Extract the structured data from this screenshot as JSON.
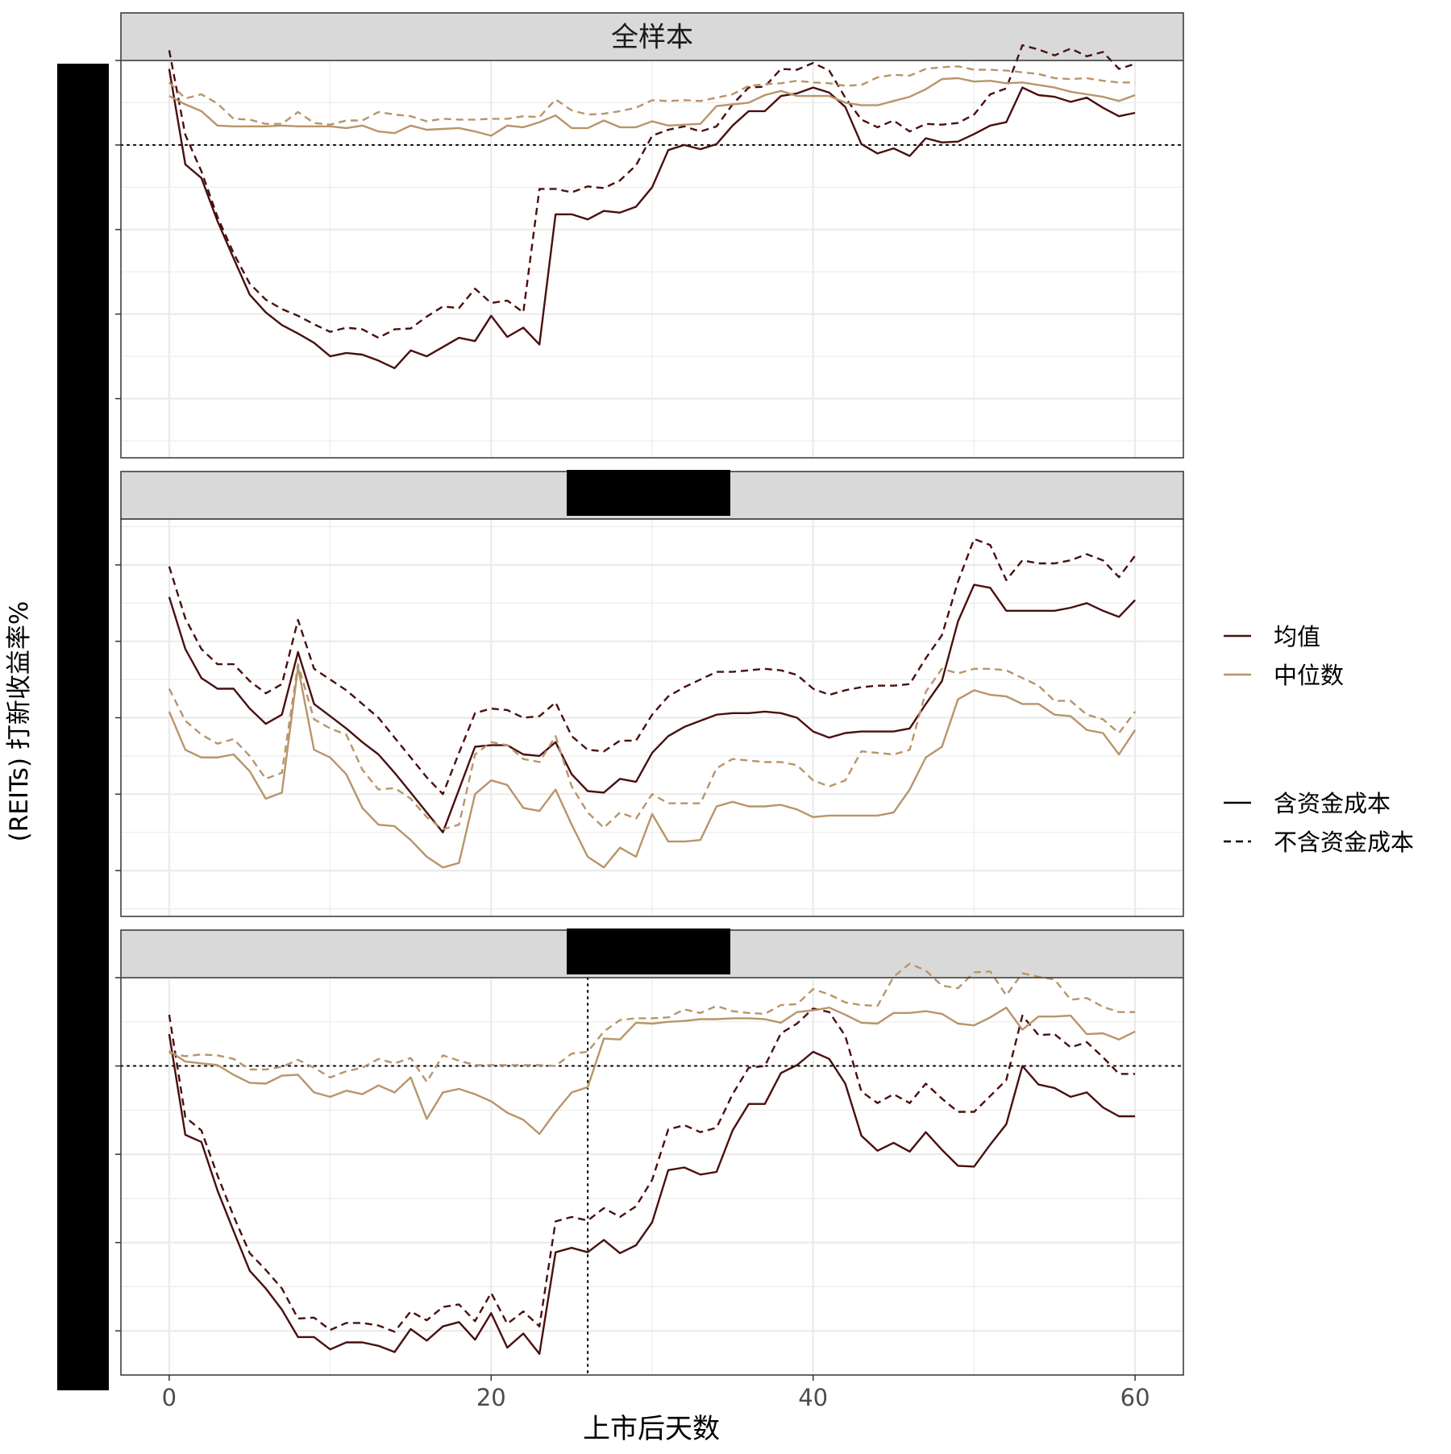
{
  "chart_data": {
    "type": "line",
    "xlabel": "上市后天数",
    "ylabel": "(REITs) 打新收益率%",
    "xlim": [
      -3,
      63
    ],
    "xticks": [
      0,
      20,
      40,
      60
    ],
    "xtick_labels": [
      "0",
      "20",
      "40",
      "60"
    ],
    "colors": {
      "mean": "#4a0f0f",
      "median": "#b8956a"
    },
    "legend": {
      "placement": "right",
      "color_entries": [
        {
          "label": "均值",
          "key": "mean"
        },
        {
          "label": "中位数",
          "key": "median"
        }
      ],
      "linetype_entries": [
        {
          "label": "含资金成本",
          "dash": "solid"
        },
        {
          "label": "不含资金成本",
          "dash": "dashed"
        }
      ]
    },
    "panels": [
      {
        "strip": "全样本",
        "ylim": [
          -27,
          20
        ],
        "hline": 10,
        "vline": null,
        "series": [
          {
            "name": "均值 含资金成本",
            "stat": "mean",
            "dash": "solid",
            "values": [
              19.0,
              7.7,
              6.1,
              1.0,
              -3.4,
              -7.7,
              -9.8,
              -11.3,
              -12.3,
              -13.4,
              -15.0,
              -14.6,
              -14.8,
              -15.5,
              -16.4,
              -14.3,
              -15.0,
              -13.9,
              -12.8,
              -13.2,
              -10.2,
              -12.7,
              -11.6,
              -13.6,
              1.8,
              1.8,
              1.2,
              2.2,
              2.0,
              2.7,
              5.0,
              9.4,
              10.0,
              9.5,
              10.1,
              12.3,
              14.0,
              14.0,
              15.8,
              16.1,
              16.8,
              16.2,
              14.5,
              10.1,
              9.0,
              9.6,
              8.7,
              10.8,
              10.3,
              10.4,
              11.3,
              12.3,
              12.7,
              16.8,
              15.9,
              15.7,
              15.1,
              15.6,
              14.4,
              13.4,
              13.8
            ]
          },
          {
            "name": "均值 不含资金成本",
            "stat": "mean",
            "dash": "dashed",
            "values": [
              21.2,
              11.2,
              6.9,
              1.5,
              -2.8,
              -6.4,
              -8.3,
              -9.4,
              -10.2,
              -11.2,
              -12.1,
              -11.6,
              -11.8,
              -12.8,
              -11.8,
              -11.7,
              -10.3,
              -9.1,
              -9.3,
              -7.0,
              -8.7,
              -8.4,
              -9.8,
              4.8,
              4.8,
              4.4,
              5.1,
              4.9,
              5.8,
              7.6,
              11.1,
              11.8,
              12.2,
              11.6,
              12.2,
              14.8,
              16.8,
              16.9,
              19.0,
              18.9,
              19.7,
              18.8,
              15.6,
              13.0,
              12.1,
              12.9,
              11.6,
              12.5,
              12.4,
              12.6,
              13.6,
              16.0,
              16.7,
              21.8,
              21.3,
              20.6,
              21.4,
              20.5,
              21.0,
              19.0,
              19.6
            ]
          },
          {
            "name": "中位数 含资金成本",
            "stat": "median",
            "dash": "solid",
            "values": [
              15.8,
              14.8,
              14.0,
              12.3,
              12.2,
              12.2,
              12.2,
              12.3,
              12.2,
              12.2,
              12.2,
              12.0,
              12.3,
              11.6,
              11.4,
              12.3,
              11.8,
              11.9,
              12.0,
              11.6,
              11.1,
              12.3,
              12.1,
              12.7,
              13.5,
              12.0,
              12.0,
              12.9,
              12.1,
              12.1,
              12.8,
              12.3,
              12.4,
              12.5,
              14.6,
              14.8,
              15.0,
              15.9,
              16.4,
              15.8,
              15.8,
              15.8,
              15.0,
              14.7,
              14.7,
              15.2,
              15.7,
              16.6,
              17.8,
              17.9,
              17.5,
              17.6,
              17.3,
              17.4,
              17.1,
              16.8,
              16.3,
              16.0,
              15.7,
              15.2,
              15.9
            ]
          },
          {
            "name": "中位数 不含资金成本",
            "stat": "median",
            "dash": "dashed",
            "values": [
              17.4,
              15.5,
              16.0,
              14.9,
              13.1,
              13.0,
              12.5,
              12.5,
              13.9,
              12.6,
              12.4,
              12.9,
              12.9,
              13.9,
              13.6,
              13.4,
              12.8,
              13.1,
              13.0,
              13.0,
              13.1,
              13.1,
              13.4,
              13.3,
              15.4,
              14.1,
              13.6,
              13.7,
              14.0,
              14.4,
              15.3,
              15.2,
              15.3,
              15.2,
              15.6,
              16.0,
              17.0,
              17.2,
              17.3,
              17.6,
              17.4,
              17.3,
              17.0,
              17.1,
              18.0,
              18.3,
              18.2,
              19.0,
              19.2,
              19.3,
              18.9,
              18.9,
              18.8,
              18.6,
              18.4,
              17.9,
              17.8,
              17.9,
              17.6,
              17.4,
              17.4
            ]
          }
        ]
      },
      {
        "strip": "",
        "ylim": [
          -8,
          18
        ],
        "hline": null,
        "vline": null,
        "series": [
          {
            "name": "均值 含资金成本",
            "stat": "mean",
            "dash": "solid",
            "values": [
              12.9,
              9.5,
              7.6,
              6.9,
              6.9,
              5.6,
              4.6,
              5.2,
              9.3,
              5.9,
              5.1,
              4.3,
              3.4,
              2.6,
              1.4,
              0.1,
              -1.2,
              -2.5,
              0.3,
              3.1,
              3.2,
              3.2,
              2.6,
              2.5,
              3.4,
              1.3,
              0.2,
              0.1,
              1.0,
              0.8,
              2.7,
              3.8,
              4.4,
              4.8,
              5.2,
              5.3,
              5.3,
              5.4,
              5.3,
              5.0,
              4.1,
              3.7,
              4.0,
              4.1,
              4.1,
              4.1,
              4.3,
              5.9,
              7.4,
              11.3,
              13.7,
              13.5,
              12.0,
              12.0,
              12.0,
              12.0,
              12.2,
              12.5,
              12.0,
              11.6,
              12.7
            ]
          },
          {
            "name": "均值 不含资金成本",
            "stat": "mean",
            "dash": "dashed",
            "values": [
              14.9,
              11.5,
              9.5,
              8.5,
              8.5,
              7.4,
              6.6,
              7.2,
              11.4,
              8.2,
              7.5,
              6.8,
              5.9,
              5.0,
              3.7,
              2.4,
              1.1,
              0.0,
              2.7,
              5.3,
              5.6,
              5.5,
              5.0,
              5.1,
              6.0,
              3.8,
              2.9,
              2.8,
              3.5,
              3.5,
              5.2,
              6.4,
              7.0,
              7.5,
              8.0,
              8.0,
              8.1,
              8.2,
              8.1,
              7.8,
              6.9,
              6.5,
              6.8,
              7.0,
              7.1,
              7.1,
              7.2,
              8.9,
              10.4,
              13.9,
              16.7,
              16.3,
              14.0,
              15.3,
              15.1,
              15.1,
              15.3,
              15.7,
              15.3,
              14.2,
              15.6
            ]
          },
          {
            "name": "中位数 含资金成本",
            "stat": "median",
            "dash": "solid",
            "values": [
              5.4,
              2.9,
              2.4,
              2.4,
              2.6,
              1.5,
              -0.3,
              0.1,
              8.3,
              2.9,
              2.4,
              1.3,
              -0.9,
              -2.0,
              -2.1,
              -3.0,
              -4.1,
              -4.8,
              -4.5,
              0.0,
              0.9,
              0.6,
              -0.9,
              -1.1,
              0.3,
              -2.0,
              -4.1,
              -4.8,
              -3.5,
              -4.1,
              -1.3,
              -3.1,
              -3.1,
              -3.0,
              -0.8,
              -0.5,
              -0.8,
              -0.8,
              -0.7,
              -1.0,
              -1.5,
              -1.4,
              -1.4,
              -1.4,
              -1.4,
              -1.2,
              0.3,
              2.4,
              3.1,
              6.2,
              6.8,
              6.5,
              6.4,
              5.9,
              5.9,
              5.2,
              5.1,
              4.2,
              4.0,
              2.6,
              4.2
            ]
          },
          {
            "name": "中位数 不含资金成本",
            "stat": "median",
            "dash": "dashed",
            "values": [
              6.9,
              4.8,
              3.9,
              3.3,
              3.6,
              2.5,
              1.0,
              1.4,
              8.5,
              4.9,
              4.3,
              3.9,
              1.6,
              0.3,
              0.4,
              -0.3,
              -1.5,
              -2.3,
              -2.0,
              2.6,
              3.4,
              3.2,
              2.3,
              2.1,
              3.8,
              0.5,
              -1.2,
              -2.2,
              -1.2,
              -1.6,
              0.0,
              -0.6,
              -0.6,
              -0.6,
              1.7,
              2.3,
              2.2,
              2.1,
              2.1,
              1.9,
              0.9,
              0.5,
              0.9,
              2.8,
              2.7,
              2.6,
              2.9,
              6.7,
              8.2,
              7.9,
              8.2,
              8.2,
              8.1,
              7.6,
              7.1,
              6.1,
              6.1,
              5.2,
              4.9,
              4.0,
              5.4
            ]
          }
        ]
      },
      {
        "strip": "",
        "ylim": [
          -35,
          10
        ],
        "hline": 0,
        "vline": 26,
        "series": [
          {
            "name": "均值 含资金成本",
            "stat": "mean",
            "dash": "solid",
            "values": [
              3.6,
              -7.8,
              -8.6,
              -14.1,
              -18.7,
              -23.2,
              -25.2,
              -27.6,
              -30.7,
              -30.7,
              -32.1,
              -31.3,
              -31.3,
              -31.7,
              -32.4,
              -29.8,
              -31.1,
              -29.5,
              -29.0,
              -31.0,
              -28.0,
              -31.9,
              -30.3,
              -32.6,
              -21.1,
              -20.6,
              -21.1,
              -19.7,
              -21.2,
              -20.3,
              -17.7,
              -11.8,
              -11.5,
              -12.3,
              -12.0,
              -7.3,
              -4.3,
              -4.3,
              -0.8,
              0.1,
              1.6,
              0.8,
              -2.0,
              -7.9,
              -9.6,
              -8.7,
              -9.7,
              -7.5,
              -9.5,
              -11.3,
              -11.4,
              -8.9,
              -6.6,
              0.0,
              -2.1,
              -2.5,
              -3.5,
              -3.0,
              -4.7,
              -5.7,
              -5.7
            ]
          },
          {
            "name": "均值 不含资金成本",
            "stat": "mean",
            "dash": "dashed",
            "values": [
              5.8,
              -5.8,
              -7.3,
              -12.4,
              -17.0,
              -21.2,
              -23.1,
              -25.2,
              -28.6,
              -28.5,
              -29.9,
              -29.1,
              -29.1,
              -29.4,
              -30.1,
              -27.8,
              -28.8,
              -27.3,
              -27.0,
              -28.9,
              -25.7,
              -29.2,
              -27.8,
              -29.5,
              -17.6,
              -17.1,
              -17.5,
              -16.1,
              -17.1,
              -15.9,
              -12.9,
              -7.2,
              -6.7,
              -7.5,
              -7.0,
              -3.2,
              -0.2,
              0.0,
              3.7,
              4.8,
              6.5,
              6.1,
              3.4,
              -2.9,
              -4.2,
              -3.2,
              -4.2,
              -2.0,
              -3.7,
              -5.2,
              -5.2,
              -3.4,
              -1.6,
              5.7,
              3.5,
              3.6,
              2.1,
              2.7,
              1.0,
              -0.9,
              -0.9
            ]
          },
          {
            "name": "中位数 含资金成本",
            "stat": "median",
            "dash": "solid",
            "values": [
              1.7,
              0.5,
              0.3,
              0.1,
              -1.0,
              -1.9,
              -2.0,
              -1.1,
              -1.0,
              -3.0,
              -3.5,
              -2.8,
              -3.2,
              -2.2,
              -3.0,
              -1.3,
              -6.0,
              -3.0,
              -2.6,
              -3.2,
              -4.0,
              -5.3,
              -6.1,
              -7.7,
              -5.2,
              -3.0,
              -2.4,
              3.1,
              3.0,
              4.9,
              4.8,
              5.0,
              5.1,
              5.3,
              5.3,
              5.4,
              5.4,
              5.3,
              4.9,
              6.1,
              6.3,
              6.6,
              5.8,
              4.9,
              4.8,
              6.0,
              6.0,
              6.2,
              5.9,
              4.8,
              4.6,
              5.5,
              6.6,
              4.1,
              5.6,
              5.6,
              5.7,
              3.6,
              3.7,
              3.0,
              3.9
            ]
          },
          {
            "name": "中位数 不含资金成本",
            "stat": "median",
            "dash": "dashed",
            "values": [
              1.5,
              1.1,
              1.3,
              1.2,
              0.8,
              -0.4,
              -0.4,
              -0.1,
              0.7,
              -0.2,
              -1.3,
              -0.6,
              -0.2,
              0.8,
              0.3,
              0.9,
              -1.8,
              1.2,
              0.6,
              0.1,
              0.1,
              0.1,
              0.1,
              0.1,
              0.0,
              1.4,
              1.6,
              3.9,
              5.2,
              5.4,
              5.4,
              5.5,
              6.4,
              6.0,
              6.8,
              6.2,
              6.0,
              5.9,
              6.9,
              7.0,
              8.7,
              8.1,
              7.2,
              6.9,
              6.8,
              10.1,
              11.6,
              10.8,
              9.1,
              8.8,
              10.6,
              10.7,
              8.0,
              10.5,
              10.1,
              9.8,
              7.5,
              7.7,
              6.7,
              6.1,
              6.1
            ]
          }
        ]
      }
    ]
  }
}
